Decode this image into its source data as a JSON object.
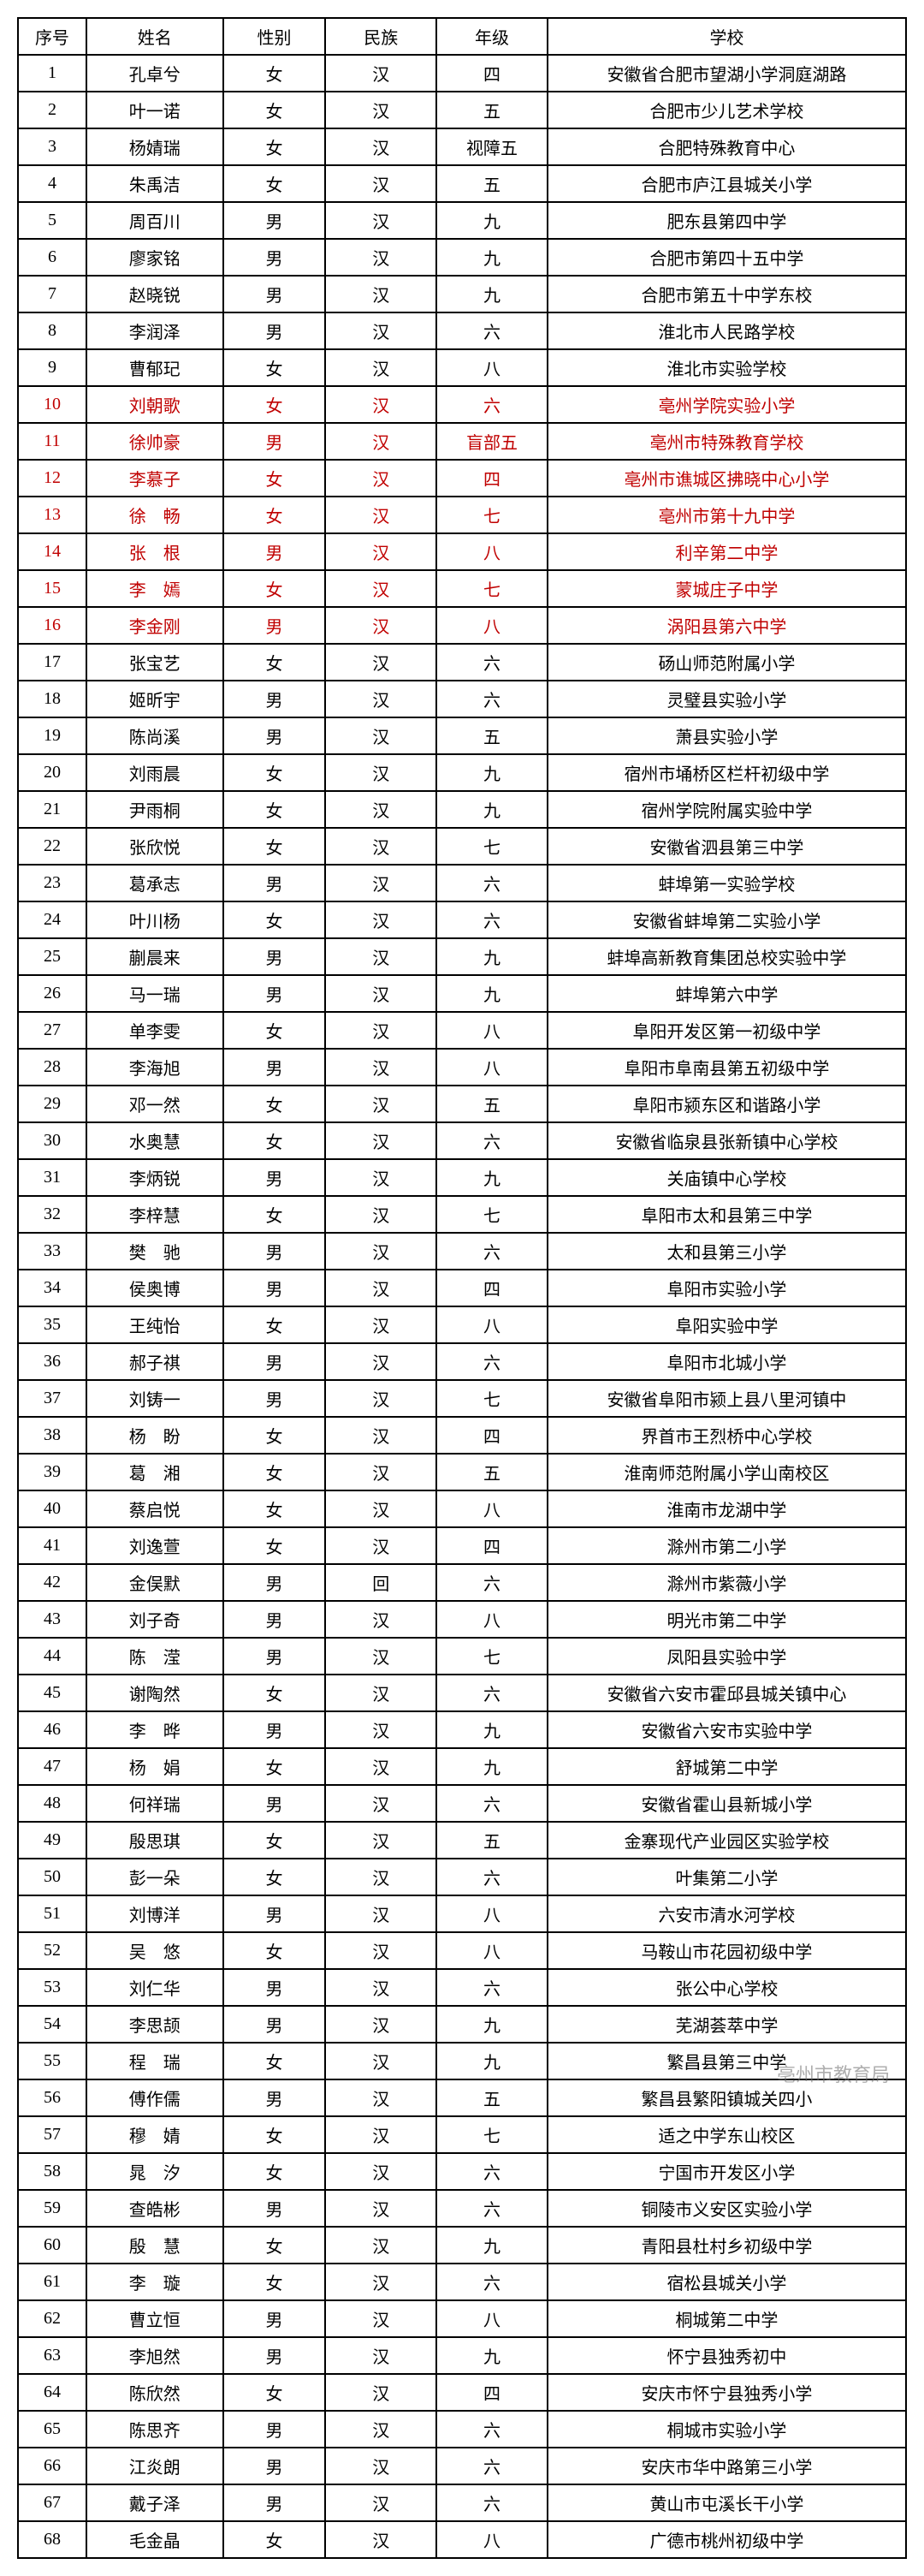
{
  "table": {
    "headers": {
      "seq": "序号",
      "name": "姓名",
      "gender": "性别",
      "ethnic": "民族",
      "grade": "年级",
      "school": "学校"
    },
    "highlighted_rows": [
      10,
      11,
      12,
      13,
      14,
      15,
      16
    ],
    "highlight_color": "#c00000",
    "border_color": "#000000",
    "background_color": "#ffffff",
    "font_size": 20,
    "rows": [
      {
        "seq": "1",
        "name": "孔卓兮",
        "gender": "女",
        "ethnic": "汉",
        "grade": "四",
        "school": "安徽省合肥市望湖小学洞庭湖路"
      },
      {
        "seq": "2",
        "name": "叶一诺",
        "gender": "女",
        "ethnic": "汉",
        "grade": "五",
        "school": "合肥市少儿艺术学校"
      },
      {
        "seq": "3",
        "name": "杨婧瑞",
        "gender": "女",
        "ethnic": "汉",
        "grade": "视障五",
        "school": "合肥特殊教育中心"
      },
      {
        "seq": "4",
        "name": "朱禹洁",
        "gender": "女",
        "ethnic": "汉",
        "grade": "五",
        "school": "合肥市庐江县城关小学"
      },
      {
        "seq": "5",
        "name": "周百川",
        "gender": "男",
        "ethnic": "汉",
        "grade": "九",
        "school": "肥东县第四中学"
      },
      {
        "seq": "6",
        "name": "廖家铭",
        "gender": "男",
        "ethnic": "汉",
        "grade": "九",
        "school": "合肥市第四十五中学"
      },
      {
        "seq": "7",
        "name": "赵晓锐",
        "gender": "男",
        "ethnic": "汉",
        "grade": "九",
        "school": "合肥市第五十中学东校"
      },
      {
        "seq": "8",
        "name": "李润泽",
        "gender": "男",
        "ethnic": "汉",
        "grade": "六",
        "school": "淮北市人民路学校"
      },
      {
        "seq": "9",
        "name": "曹郁玘",
        "gender": "女",
        "ethnic": "汉",
        "grade": "八",
        "school": "淮北市实验学校"
      },
      {
        "seq": "10",
        "name": "刘朝歌",
        "gender": "女",
        "ethnic": "汉",
        "grade": "六",
        "school": "亳州学院实验小学"
      },
      {
        "seq": "11",
        "name": "徐帅豪",
        "gender": "男",
        "ethnic": "汉",
        "grade": "盲部五",
        "school": "亳州市特殊教育学校"
      },
      {
        "seq": "12",
        "name": "李慕子",
        "gender": "女",
        "ethnic": "汉",
        "grade": "四",
        "school": "亳州市谯城区拂晓中心小学"
      },
      {
        "seq": "13",
        "name": "徐　畅",
        "gender": "女",
        "ethnic": "汉",
        "grade": "七",
        "school": "亳州市第十九中学"
      },
      {
        "seq": "14",
        "name": "张　根",
        "gender": "男",
        "ethnic": "汉",
        "grade": "八",
        "school": "利辛第二中学"
      },
      {
        "seq": "15",
        "name": "李　嫣",
        "gender": "女",
        "ethnic": "汉",
        "grade": "七",
        "school": "蒙城庄子中学"
      },
      {
        "seq": "16",
        "name": "李金刚",
        "gender": "男",
        "ethnic": "汉",
        "grade": "八",
        "school": "涡阳县第六中学"
      },
      {
        "seq": "17",
        "name": "张宝艺",
        "gender": "女",
        "ethnic": "汉",
        "grade": "六",
        "school": "砀山师范附属小学"
      },
      {
        "seq": "18",
        "name": "姬昕宇",
        "gender": "男",
        "ethnic": "汉",
        "grade": "六",
        "school": "灵璧县实验小学"
      },
      {
        "seq": "19",
        "name": "陈尚溪",
        "gender": "男",
        "ethnic": "汉",
        "grade": "五",
        "school": "萧县实验小学"
      },
      {
        "seq": "20",
        "name": "刘雨晨",
        "gender": "女",
        "ethnic": "汉",
        "grade": "九",
        "school": "宿州市埇桥区栏杆初级中学"
      },
      {
        "seq": "21",
        "name": "尹雨桐",
        "gender": "女",
        "ethnic": "汉",
        "grade": "九",
        "school": "宿州学院附属实验中学"
      },
      {
        "seq": "22",
        "name": "张欣悦",
        "gender": "女",
        "ethnic": "汉",
        "grade": "七",
        "school": "安徽省泗县第三中学"
      },
      {
        "seq": "23",
        "name": "葛承志",
        "gender": "男",
        "ethnic": "汉",
        "grade": "六",
        "school": "蚌埠第一实验学校"
      },
      {
        "seq": "24",
        "name": "叶川杨",
        "gender": "女",
        "ethnic": "汉",
        "grade": "六",
        "school": "安徽省蚌埠第二实验小学"
      },
      {
        "seq": "25",
        "name": "蒯晨来",
        "gender": "男",
        "ethnic": "汉",
        "grade": "九",
        "school": "蚌埠高新教育集团总校实验中学"
      },
      {
        "seq": "26",
        "name": "马一瑞",
        "gender": "男",
        "ethnic": "汉",
        "grade": "九",
        "school": "蚌埠第六中学"
      },
      {
        "seq": "27",
        "name": "单李雯",
        "gender": "女",
        "ethnic": "汉",
        "grade": "八",
        "school": "阜阳开发区第一初级中学"
      },
      {
        "seq": "28",
        "name": "李海旭",
        "gender": "男",
        "ethnic": "汉",
        "grade": "八",
        "school": "阜阳市阜南县第五初级中学"
      },
      {
        "seq": "29",
        "name": "邓一然",
        "gender": "女",
        "ethnic": "汉",
        "grade": "五",
        "school": "阜阳市颍东区和谐路小学"
      },
      {
        "seq": "30",
        "name": "水奥慧",
        "gender": "女",
        "ethnic": "汉",
        "grade": "六",
        "school": "安徽省临泉县张新镇中心学校"
      },
      {
        "seq": "31",
        "name": "李炳锐",
        "gender": "男",
        "ethnic": "汉",
        "grade": "九",
        "school": "关庙镇中心学校"
      },
      {
        "seq": "32",
        "name": "李梓慧",
        "gender": "女",
        "ethnic": "汉",
        "grade": "七",
        "school": "阜阳市太和县第三中学"
      },
      {
        "seq": "33",
        "name": "樊　驰",
        "gender": "男",
        "ethnic": "汉",
        "grade": "六",
        "school": "太和县第三小学"
      },
      {
        "seq": "34",
        "name": "侯奥博",
        "gender": "男",
        "ethnic": "汉",
        "grade": "四",
        "school": "阜阳市实验小学"
      },
      {
        "seq": "35",
        "name": "王纯怡",
        "gender": "女",
        "ethnic": "汉",
        "grade": "八",
        "school": "阜阳实验中学"
      },
      {
        "seq": "36",
        "name": "郝子祺",
        "gender": "男",
        "ethnic": "汉",
        "grade": "六",
        "school": "阜阳市北城小学"
      },
      {
        "seq": "37",
        "name": "刘铸一",
        "gender": "男",
        "ethnic": "汉",
        "grade": "七",
        "school": "安徽省阜阳市颍上县八里河镇中"
      },
      {
        "seq": "38",
        "name": "杨　盼",
        "gender": "女",
        "ethnic": "汉",
        "grade": "四",
        "school": "界首市王烈桥中心学校"
      },
      {
        "seq": "39",
        "name": "葛　湘",
        "gender": "女",
        "ethnic": "汉",
        "grade": "五",
        "school": "淮南师范附属小学山南校区"
      },
      {
        "seq": "40",
        "name": "蔡启悦",
        "gender": "女",
        "ethnic": "汉",
        "grade": "八",
        "school": "淮南市龙湖中学"
      },
      {
        "seq": "41",
        "name": "刘逸萱",
        "gender": "女",
        "ethnic": "汉",
        "grade": "四",
        "school": "滁州市第二小学"
      },
      {
        "seq": "42",
        "name": "金俣默",
        "gender": "男",
        "ethnic": "回",
        "grade": "六",
        "school": "滁州市紫薇小学"
      },
      {
        "seq": "43",
        "name": "刘子奇",
        "gender": "男",
        "ethnic": "汉",
        "grade": "八",
        "school": "明光市第二中学"
      },
      {
        "seq": "44",
        "name": "陈　滢",
        "gender": "男",
        "ethnic": "汉",
        "grade": "七",
        "school": "凤阳县实验中学"
      },
      {
        "seq": "45",
        "name": "谢陶然",
        "gender": "女",
        "ethnic": "汉",
        "grade": "六",
        "school": "安徽省六安市霍邱县城关镇中心"
      },
      {
        "seq": "46",
        "name": "李　晔",
        "gender": "男",
        "ethnic": "汉",
        "grade": "九",
        "school": "安徽省六安市实验中学"
      },
      {
        "seq": "47",
        "name": "杨　娟",
        "gender": "女",
        "ethnic": "汉",
        "grade": "九",
        "school": "舒城第二中学"
      },
      {
        "seq": "48",
        "name": "何祥瑞",
        "gender": "男",
        "ethnic": "汉",
        "grade": "六",
        "school": "安徽省霍山县新城小学"
      },
      {
        "seq": "49",
        "name": "殷思琪",
        "gender": "女",
        "ethnic": "汉",
        "grade": "五",
        "school": "金寨现代产业园区实验学校"
      },
      {
        "seq": "50",
        "name": "彭一朵",
        "gender": "女",
        "ethnic": "汉",
        "grade": "六",
        "school": "叶集第二小学"
      },
      {
        "seq": "51",
        "name": "刘博洋",
        "gender": "男",
        "ethnic": "汉",
        "grade": "八",
        "school": "六安市清水河学校"
      },
      {
        "seq": "52",
        "name": "吴　悠",
        "gender": "女",
        "ethnic": "汉",
        "grade": "八",
        "school": "马鞍山市花园初级中学"
      },
      {
        "seq": "53",
        "name": "刘仁华",
        "gender": "男",
        "ethnic": "汉",
        "grade": "六",
        "school": "张公中心学校"
      },
      {
        "seq": "54",
        "name": "李思颉",
        "gender": "男",
        "ethnic": "汉",
        "grade": "九",
        "school": "芜湖荟萃中学"
      },
      {
        "seq": "55",
        "name": "程　瑞",
        "gender": "女",
        "ethnic": "汉",
        "grade": "九",
        "school": "繁昌县第三中学"
      },
      {
        "seq": "56",
        "name": "傅作儒",
        "gender": "男",
        "ethnic": "汉",
        "grade": "五",
        "school": "繁昌县繁阳镇城关四小"
      },
      {
        "seq": "57",
        "name": "穆　婧",
        "gender": "女",
        "ethnic": "汉",
        "grade": "七",
        "school": "适之中学东山校区"
      },
      {
        "seq": "58",
        "name": "晁　汐",
        "gender": "女",
        "ethnic": "汉",
        "grade": "六",
        "school": "宁国市开发区小学"
      },
      {
        "seq": "59",
        "name": "查皓彬",
        "gender": "男",
        "ethnic": "汉",
        "grade": "六",
        "school": "铜陵市义安区实验小学"
      },
      {
        "seq": "60",
        "name": "殷　慧",
        "gender": "女",
        "ethnic": "汉",
        "grade": "九",
        "school": "青阳县杜村乡初级中学"
      },
      {
        "seq": "61",
        "name": "李　璇",
        "gender": "女",
        "ethnic": "汉",
        "grade": "六",
        "school": "宿松县城关小学"
      },
      {
        "seq": "62",
        "name": "曹立恒",
        "gender": "男",
        "ethnic": "汉",
        "grade": "八",
        "school": "桐城第二中学"
      },
      {
        "seq": "63",
        "name": "李旭然",
        "gender": "男",
        "ethnic": "汉",
        "grade": "九",
        "school": "怀宁县独秀初中"
      },
      {
        "seq": "64",
        "name": "陈欣然",
        "gender": "女",
        "ethnic": "汉",
        "grade": "四",
        "school": "安庆市怀宁县独秀小学"
      },
      {
        "seq": "65",
        "name": "陈思齐",
        "gender": "男",
        "ethnic": "汉",
        "grade": "六",
        "school": "桐城市实验小学"
      },
      {
        "seq": "66",
        "name": "江炎朗",
        "gender": "男",
        "ethnic": "汉",
        "grade": "六",
        "school": "安庆市华中路第三小学"
      },
      {
        "seq": "67",
        "name": "戴子泽",
        "gender": "男",
        "ethnic": "汉",
        "grade": "六",
        "school": "黄山市屯溪长干小学"
      },
      {
        "seq": "68",
        "name": "毛金晶",
        "gender": "女",
        "ethnic": "汉",
        "grade": "八",
        "school": "广德市桃州初级中学"
      }
    ]
  },
  "watermark": "亳州市教育局"
}
